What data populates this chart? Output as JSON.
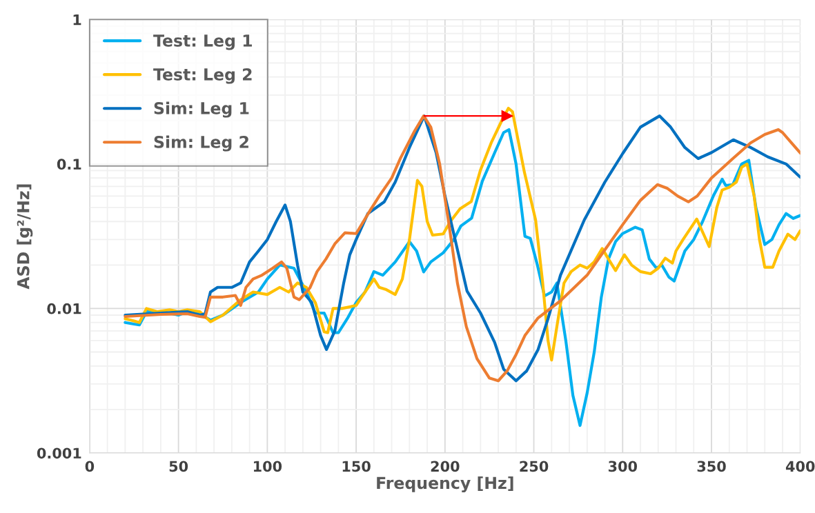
{
  "chart_data": {
    "type": "line",
    "xlabel": "Frequency [Hz]",
    "ylabel": "ASD [g²/Hz]",
    "xlim": [
      0,
      400
    ],
    "xticks": [
      0,
      50,
      100,
      150,
      200,
      250,
      300,
      350,
      400
    ],
    "ylim": [
      0.001,
      1
    ],
    "yticks": [
      0.001,
      0.01,
      0.1,
      1
    ],
    "log": "y",
    "grid": true,
    "legend": "top left",
    "marker": "none",
    "line_style": "solid",
    "series": [
      {
        "color": "#ff0000",
        "marker": "triangle",
        "x": [
          188.3,
          235
        ],
        "values": [
          0.215,
          0.215
        ]
      },
      {
        "name": "Test: Leg 1",
        "color": "#00b0f0",
        "x": [
          20,
          25,
          28,
          32,
          40,
          50,
          55,
          62,
          68,
          75,
          85,
          95,
          100,
          107,
          115,
          122,
          127,
          132,
          137,
          140,
          145,
          150,
          155,
          160,
          165,
          172,
          180,
          184,
          188,
          192,
          199,
          205,
          209,
          215,
          221,
          228,
          233,
          236,
          240,
          245,
          248,
          252,
          256,
          260,
          263,
          268,
          272,
          276,
          280,
          284,
          288,
          292,
          296,
          300,
          307,
          311,
          315,
          319,
          322,
          326,
          329,
          335,
          340,
          345,
          351,
          356,
          358,
          362,
          367,
          371,
          375,
          380,
          384,
          388,
          392,
          396,
          400
        ],
        "values": [
          0.008,
          0.0078,
          0.0077,
          0.0095,
          0.0095,
          0.009,
          0.0095,
          0.0092,
          0.0083,
          0.009,
          0.011,
          0.013,
          0.016,
          0.02,
          0.019,
          0.013,
          0.0093,
          0.0093,
          0.0068,
          0.0068,
          0.0085,
          0.011,
          0.013,
          0.018,
          0.017,
          0.021,
          0.029,
          0.025,
          0.0179,
          0.021,
          0.0243,
          0.03,
          0.0373,
          0.0422,
          0.076,
          0.12,
          0.165,
          0.173,
          0.1,
          0.0316,
          0.0306,
          0.02,
          0.0122,
          0.013,
          0.015,
          0.006,
          0.0025,
          0.00155,
          0.0026,
          0.005,
          0.012,
          0.022,
          0.029,
          0.033,
          0.0365,
          0.035,
          0.022,
          0.019,
          0.02,
          0.0165,
          0.0155,
          0.025,
          0.03,
          0.04,
          0.06,
          0.0785,
          0.071,
          0.072,
          0.1,
          0.106,
          0.05,
          0.0277,
          0.03,
          0.038,
          0.0454,
          0.042,
          0.044
        ]
      },
      {
        "name": "Test: Leg 2",
        "color": "#ffc000",
        "x": [
          20,
          25,
          28,
          32,
          38,
          45,
          50,
          55,
          62,
          68,
          75,
          85,
          92,
          100,
          107,
          112,
          117,
          122,
          127,
          132,
          134,
          137,
          142,
          150,
          155,
          160,
          163,
          167,
          172,
          176,
          180,
          184.5,
          187,
          190,
          193,
          199,
          203,
          208.5,
          214.8,
          220,
          226,
          232,
          235.7,
          238,
          244.7,
          251,
          255,
          258,
          260,
          264,
          267,
          271,
          276,
          280,
          284,
          288.5,
          292,
          296,
          301,
          305,
          310,
          315.7,
          320,
          324,
          328,
          330,
          334,
          341.7,
          348.7,
          353,
          356,
          360,
          364,
          367,
          370,
          374,
          377,
          380,
          384.5,
          388,
          393,
          397,
          400
        ],
        "values": [
          0.0085,
          0.0082,
          0.008,
          0.01,
          0.0095,
          0.0098,
          0.0095,
          0.0098,
          0.0095,
          0.0081,
          0.009,
          0.0115,
          0.013,
          0.0125,
          0.014,
          0.013,
          0.015,
          0.014,
          0.011,
          0.0069,
          0.0068,
          0.01,
          0.01,
          0.0105,
          0.013,
          0.016,
          0.014,
          0.0135,
          0.0125,
          0.016,
          0.03,
          0.077,
          0.07,
          0.04,
          0.0322,
          0.0328,
          0.04,
          0.049,
          0.055,
          0.091,
          0.14,
          0.2,
          0.243,
          0.23,
          0.0877,
          0.041,
          0.015,
          0.006,
          0.0044,
          0.009,
          0.015,
          0.018,
          0.02,
          0.019,
          0.021,
          0.026,
          0.022,
          0.0183,
          0.0235,
          0.02,
          0.018,
          0.0174,
          0.019,
          0.0223,
          0.0206,
          0.025,
          0.03,
          0.0416,
          0.0268,
          0.05,
          0.066,
          0.069,
          0.075,
          0.095,
          0.1,
          0.06,
          0.03,
          0.0193,
          0.0193,
          0.025,
          0.0327,
          0.03,
          0.0345
        ]
      },
      {
        "name": "Sim: Leg 1",
        "color": "#0070c0",
        "x": [
          20,
          40,
          55,
          62,
          65,
          68,
          72,
          80,
          85,
          90,
          95,
          100,
          105,
          110,
          113,
          117,
          120,
          125,
          130,
          133.3,
          138,
          143,
          146.4,
          150,
          156.6,
          165.8,
          172,
          180,
          188.3,
          195,
          200,
          204.7,
          212.4,
          220,
          228,
          233,
          240,
          246,
          252.4,
          258,
          265,
          278.4,
          290,
          300,
          310,
          320.8,
          327,
          335,
          342.5,
          350,
          362.3,
          372,
          381.7,
          392,
          400
        ],
        "values": [
          0.009,
          0.0093,
          0.0095,
          0.009,
          0.0092,
          0.013,
          0.014,
          0.014,
          0.015,
          0.021,
          0.025,
          0.03,
          0.04,
          0.052,
          0.04,
          0.02,
          0.013,
          0.011,
          0.0065,
          0.0052,
          0.007,
          0.015,
          0.0235,
          0.03,
          0.0454,
          0.0547,
          0.075,
          0.13,
          0.215,
          0.12,
          0.06,
          0.0338,
          0.0132,
          0.0093,
          0.0058,
          0.0038,
          0.00316,
          0.0037,
          0.0052,
          0.0085,
          0.017,
          0.041,
          0.075,
          0.118,
          0.18,
          0.215,
          0.18,
          0.13,
          0.109,
          0.12,
          0.147,
          0.13,
          0.112,
          0.1,
          0.081
        ]
      },
      {
        "name": "Sim: Leg 2",
        "color": "#ed7d31",
        "x": [
          20,
          40,
          55,
          62,
          65,
          68,
          75,
          82,
          85,
          88,
          92,
          97,
          103,
          108,
          111,
          115,
          118,
          124,
          128,
          133,
          138,
          143.7,
          150,
          158,
          163,
          170,
          175,
          183,
          188,
          192,
          197,
          202,
          207,
          212,
          218,
          225,
          230,
          235,
          240,
          245,
          252.4,
          265,
          280,
          288.5,
          300,
          310,
          319.6,
          325,
          331,
          337,
          342,
          350,
          362,
          372,
          380,
          387.6,
          390,
          395,
          400
        ],
        "values": [
          0.0088,
          0.0091,
          0.0092,
          0.0088,
          0.0087,
          0.012,
          0.012,
          0.0123,
          0.0105,
          0.014,
          0.016,
          0.017,
          0.019,
          0.021,
          0.019,
          0.012,
          0.0115,
          0.0139,
          0.018,
          0.022,
          0.028,
          0.0334,
          0.033,
          0.048,
          0.06,
          0.08,
          0.11,
          0.17,
          0.215,
          0.18,
          0.1,
          0.04,
          0.015,
          0.0075,
          0.0045,
          0.0033,
          0.00316,
          0.0037,
          0.0048,
          0.0065,
          0.0086,
          0.0113,
          0.017,
          0.024,
          0.038,
          0.056,
          0.072,
          0.068,
          0.06,
          0.0547,
          0.06,
          0.08,
          0.109,
          0.14,
          0.16,
          0.173,
          0.165,
          0.14,
          0.119
        ]
      }
    ]
  }
}
